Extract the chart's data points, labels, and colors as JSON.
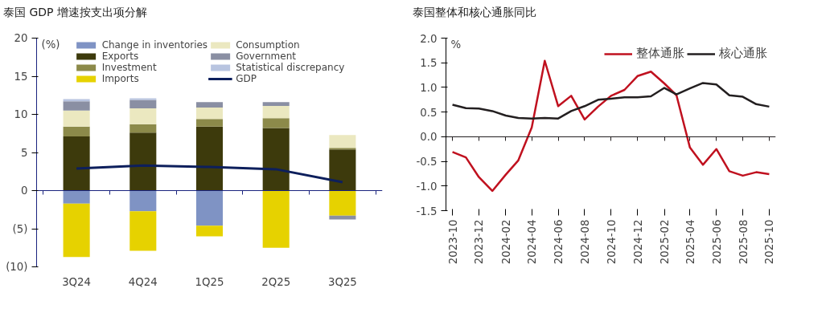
{
  "chart_data": [
    {
      "type": "bar",
      "title": "泰国 GDP 增速按支出项分解",
      "ylabel": "(%)",
      "stacked": true,
      "categories": [
        "3Q24",
        "4Q24",
        "1Q25",
        "2Q25",
        "3Q25"
      ],
      "series": [
        {
          "name": "Change in inventories",
          "color": "#7f93c4",
          "values": [
            -1.7,
            -2.7,
            -4.6,
            null,
            null
          ]
        },
        {
          "name": "Exports",
          "color": "#3d3a0c",
          "values": [
            7.1,
            7.6,
            8.4,
            8.2,
            5.4
          ]
        },
        {
          "name": "Investment",
          "color": "#8c8a4a",
          "values": [
            1.3,
            1.1,
            1.0,
            1.3,
            0.2
          ]
        },
        {
          "name": "Imports",
          "color": "#e6d200",
          "values": [
            -7.0,
            -5.2,
            -1.4,
            -7.5,
            -3.3
          ]
        },
        {
          "name": "Consumption",
          "color": "#ebe8c0",
          "values": [
            2.1,
            2.1,
            1.5,
            1.6,
            1.7
          ]
        },
        {
          "name": "Government",
          "color": "#8a8fa3",
          "values": [
            1.2,
            1.1,
            0.7,
            0.5,
            -0.5
          ]
        },
        {
          "name": "Statistical discrepancy",
          "color": "#b8c4e0",
          "values": [
            0.3,
            0.2,
            null,
            null,
            null
          ]
        },
        {
          "name": "GDP",
          "type": "line",
          "color": "#0d1f5c",
          "values": [
            2.9,
            3.3,
            3.1,
            2.8,
            1.1
          ]
        }
      ],
      "ylim": [
        -10,
        20
      ],
      "yticks": [
        {
          "value": -10,
          "label": "(10)"
        },
        {
          "value": -5,
          "label": "(5)"
        },
        0,
        5,
        10,
        15,
        20
      ],
      "ref_lines": [
        {
          "axis": "y",
          "value": 0,
          "color": "#1a237e"
        }
      ],
      "grid": false,
      "legend": "top"
    },
    {
      "type": "line",
      "title": "泰国整体和核心通胀同比",
      "ylabel": "%",
      "x": [
        "2023-10",
        "2023-11",
        "2023-12",
        "2024-01",
        "2024-02",
        "2024-03",
        "2024-04",
        "2024-05",
        "2024-06",
        "2024-07",
        "2024-08",
        "2024-09",
        "2024-10",
        "2024-11",
        "2024-12",
        "2025-01",
        "2025-02",
        "2025-03",
        "2025-04",
        "2025-05",
        "2025-06",
        "2025-07",
        "2025-08",
        "2025-09",
        "2025-10"
      ],
      "series": [
        {
          "name": "整体通胀",
          "color": "#c0111f",
          "values": [
            -0.31,
            -0.42,
            -0.82,
            -1.1,
            -0.77,
            -0.48,
            0.19,
            1.54,
            0.62,
            0.83,
            0.35,
            0.61,
            0.83,
            0.95,
            1.23,
            1.32,
            1.08,
            0.84,
            -0.22,
            -0.57,
            -0.25,
            -0.7,
            -0.79,
            -0.72,
            -0.76
          ]
        },
        {
          "name": "核心通胀",
          "color": "#231f20",
          "values": [
            0.65,
            0.58,
            0.57,
            0.52,
            0.43,
            0.38,
            0.37,
            0.38,
            0.37,
            0.52,
            0.62,
            0.75,
            0.77,
            0.8,
            0.8,
            0.82,
            0.99,
            0.86,
            0.98,
            1.09,
            1.06,
            0.84,
            0.81,
            0.66,
            0.61
          ]
        }
      ],
      "xlim": [
        "2023-10",
        "2025-10"
      ],
      "xticks": [
        "2023-10",
        "2023-12",
        "2024-02",
        "2024-04",
        "2024-06",
        "2024-08",
        "2024-10",
        "2024-12",
        "2025-02",
        "2025-04",
        "2025-06",
        "2025-08",
        "2025-10"
      ],
      "ylim": [
        -1.5,
        2.0
      ],
      "yticks": [
        {
          "value": -1.5,
          "label": "-1.5"
        },
        {
          "value": -1,
          "label": "-1.0"
        },
        {
          "value": -0.5,
          "label": "-0.5"
        },
        {
          "value": 0,
          "label": "0.0"
        },
        {
          "value": 0.5,
          "label": "0.5"
        },
        {
          "value": 1,
          "label": "1.0"
        },
        {
          "value": 1.5,
          "label": "1.5"
        },
        {
          "value": 2,
          "label": "2.0"
        }
      ],
      "ref_lines": [
        {
          "axis": "y",
          "value": 0,
          "color": "#231f20"
        }
      ],
      "grid": false,
      "legend": "top",
      "line_style": "solid"
    }
  ]
}
